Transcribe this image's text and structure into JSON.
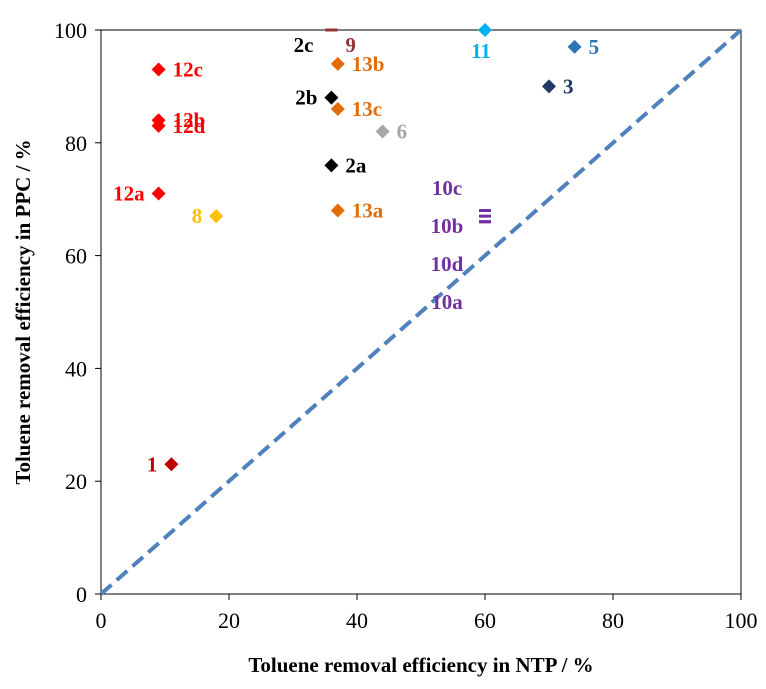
{
  "chart_data": {
    "type": "scatter",
    "xlabel": "Toluene removal efficiency in NTP / %",
    "ylabel": "Toluene removal efficiency in PPC / %",
    "xlim": [
      0,
      100
    ],
    "ylim": [
      0,
      100
    ],
    "x_ticks": [
      "0",
      "20",
      "40",
      "60",
      "80",
      "100"
    ],
    "y_ticks": [
      "0",
      "20",
      "40",
      "60",
      "80",
      "100"
    ],
    "grid": false,
    "reference_line": {
      "from": [
        0,
        0
      ],
      "to": [
        100,
        100
      ],
      "style": "dashed",
      "color": "#4f81bd"
    },
    "points": [
      {
        "label": "1",
        "x": 11,
        "y": 23,
        "color": "#c00000",
        "marker": "diamond",
        "label_pos": "left"
      },
      {
        "label": "2a",
        "x": 36,
        "y": 76,
        "color": "#000000",
        "marker": "diamond",
        "label_pos": "right"
      },
      {
        "label": "2b",
        "x": 36,
        "y": 88,
        "color": "#000000",
        "marker": "diamond",
        "label_pos": "left"
      },
      {
        "label": "2c",
        "x": 36,
        "y": 100,
        "color": "#000000",
        "marker": "dash",
        "label_pos": "left-below"
      },
      {
        "label": "3",
        "x": 70,
        "y": 90,
        "color": "#1f3864",
        "marker": "diamond",
        "label_pos": "right"
      },
      {
        "label": "5",
        "x": 74,
        "y": 97,
        "color": "#2e75b6",
        "marker": "diamond",
        "label_pos": "right"
      },
      {
        "label": "6",
        "x": 44,
        "y": 82,
        "color": "#a6a6a6",
        "marker": "diamond",
        "label_pos": "right"
      },
      {
        "label": "8",
        "x": 18,
        "y": 67,
        "color": "#ffc000",
        "marker": "diamond",
        "label_pos": "left"
      },
      {
        "label": "9",
        "x": 36,
        "y": 100,
        "color": "#943634",
        "marker": "dash",
        "label_pos": "right-below"
      },
      {
        "label": "10a",
        "x": 60,
        "y": 66,
        "color": "#7030a0",
        "marker": "dash",
        "label_pos": "stack"
      },
      {
        "label": "10b",
        "x": 60,
        "y": 67,
        "color": "#7030a0",
        "marker": "dash",
        "label_pos": "stack"
      },
      {
        "label": "10c",
        "x": 60,
        "y": 68,
        "color": "#7030a0",
        "marker": "dash",
        "label_pos": "stack"
      },
      {
        "label": "10d",
        "x": 60,
        "y": 66,
        "color": "#7030a0",
        "marker": "dash",
        "label_pos": "stack"
      },
      {
        "label": "11",
        "x": 60,
        "y": 100,
        "color": "#00b0f0",
        "marker": "diamond",
        "label_pos": "below-left"
      },
      {
        "label": "12a",
        "x": 9,
        "y": 71,
        "color": "#ff0000",
        "marker": "diamond",
        "label_pos": "left"
      },
      {
        "label": "12b",
        "x": 9,
        "y": 84,
        "color": "#ff0000",
        "marker": "diamond",
        "label_pos": "right"
      },
      {
        "label": "12c",
        "x": 9,
        "y": 93,
        "color": "#ff0000",
        "marker": "diamond",
        "label_pos": "right"
      },
      {
        "label": "12d",
        "x": 9,
        "y": 83,
        "color": "#ff0000",
        "marker": "diamond",
        "label_pos": "right"
      },
      {
        "label": "13a",
        "x": 37,
        "y": 68,
        "color": "#e36c09",
        "marker": "diamond",
        "label_pos": "right"
      },
      {
        "label": "13b",
        "x": 37,
        "y": 94,
        "color": "#e36c09",
        "marker": "diamond",
        "label_pos": "right"
      },
      {
        "label": "13c",
        "x": 37,
        "y": 86,
        "color": "#e36c09",
        "marker": "diamond",
        "label_pos": "right"
      }
    ]
  }
}
